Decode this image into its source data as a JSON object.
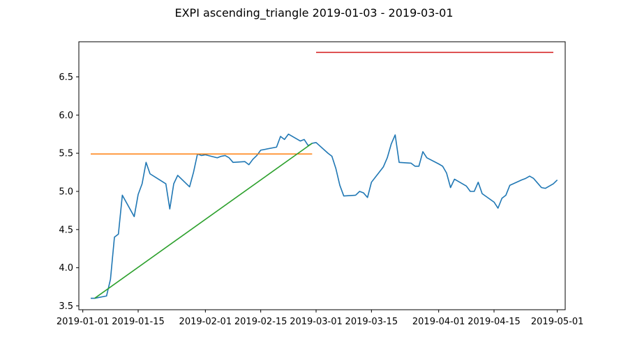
{
  "chart_data": {
    "type": "line",
    "title": "EXPI ascending_triangle 2019-01-03 - 2019-03-01",
    "xlabel": "",
    "ylabel": "",
    "x_range": [
      "2018-12-31",
      "2019-05-03"
    ],
    "ylim": [
      3.45,
      6.96
    ],
    "grid": false,
    "x_ticks": [
      "2019-01-01",
      "2019-01-15",
      "2019-02-01",
      "2019-02-15",
      "2019-03-01",
      "2019-03-15",
      "2019-04-01",
      "2019-04-15",
      "2019-05-01"
    ],
    "y_ticks": [
      3.5,
      4.0,
      4.5,
      5.0,
      5.5,
      6.0,
      6.5
    ],
    "y_tick_labels": [
      "3.5",
      "4.0",
      "4.5",
      "5.0",
      "5.5",
      "6.0",
      "6.5"
    ],
    "series": [
      {
        "color": "#1f77b4",
        "points": [
          [
            "2019-01-03",
            3.6
          ],
          [
            "2019-01-04",
            3.6
          ],
          [
            "2019-01-07",
            3.63
          ],
          [
            "2019-01-08",
            3.85
          ],
          [
            "2019-01-09",
            4.4
          ],
          [
            "2019-01-10",
            4.44
          ],
          [
            "2019-01-11",
            4.95
          ],
          [
            "2019-01-14",
            4.67
          ],
          [
            "2019-01-15",
            4.96
          ],
          [
            "2019-01-16",
            5.1
          ],
          [
            "2019-01-17",
            5.38
          ],
          [
            "2019-01-18",
            5.23
          ],
          [
            "2019-01-22",
            5.1
          ],
          [
            "2019-01-23",
            4.77
          ],
          [
            "2019-01-24",
            5.1
          ],
          [
            "2019-01-25",
            5.21
          ],
          [
            "2019-01-28",
            5.06
          ],
          [
            "2019-01-29",
            5.25
          ],
          [
            "2019-01-30",
            5.49
          ],
          [
            "2019-01-31",
            5.47
          ],
          [
            "2019-02-01",
            5.48
          ],
          [
            "2019-02-04",
            5.44
          ],
          [
            "2019-02-05",
            5.46
          ],
          [
            "2019-02-06",
            5.47
          ],
          [
            "2019-02-07",
            5.44
          ],
          [
            "2019-02-08",
            5.38
          ],
          [
            "2019-02-11",
            5.39
          ],
          [
            "2019-02-12",
            5.35
          ],
          [
            "2019-02-13",
            5.42
          ],
          [
            "2019-02-14",
            5.47
          ],
          [
            "2019-02-15",
            5.54
          ],
          [
            "2019-02-19",
            5.58
          ],
          [
            "2019-02-20",
            5.72
          ],
          [
            "2019-02-21",
            5.68
          ],
          [
            "2019-02-22",
            5.75
          ],
          [
            "2019-02-25",
            5.66
          ],
          [
            "2019-02-26",
            5.68
          ],
          [
            "2019-02-27",
            5.6
          ],
          [
            "2019-02-28",
            5.63
          ],
          [
            "2019-03-01",
            5.64
          ],
          [
            "2019-03-04",
            5.5
          ],
          [
            "2019-03-05",
            5.46
          ],
          [
            "2019-03-06",
            5.3
          ],
          [
            "2019-03-07",
            5.08
          ],
          [
            "2019-03-08",
            4.94
          ],
          [
            "2019-03-11",
            4.95
          ],
          [
            "2019-03-12",
            5.0
          ],
          [
            "2019-03-13",
            4.98
          ],
          [
            "2019-03-14",
            4.92
          ],
          [
            "2019-03-15",
            5.12
          ],
          [
            "2019-03-18",
            5.32
          ],
          [
            "2019-03-19",
            5.44
          ],
          [
            "2019-03-20",
            5.62
          ],
          [
            "2019-03-21",
            5.74
          ],
          [
            "2019-03-22",
            5.38
          ],
          [
            "2019-03-25",
            5.37
          ],
          [
            "2019-03-26",
            5.33
          ],
          [
            "2019-03-27",
            5.33
          ],
          [
            "2019-03-28",
            5.52
          ],
          [
            "2019-03-29",
            5.44
          ],
          [
            "2019-04-01",
            5.36
          ],
          [
            "2019-04-02",
            5.33
          ],
          [
            "2019-04-03",
            5.24
          ],
          [
            "2019-04-04",
            5.05
          ],
          [
            "2019-04-05",
            5.16
          ],
          [
            "2019-04-08",
            5.07
          ],
          [
            "2019-04-09",
            5.0
          ],
          [
            "2019-04-10",
            5.0
          ],
          [
            "2019-04-11",
            5.12
          ],
          [
            "2019-04-12",
            4.97
          ],
          [
            "2019-04-15",
            4.86
          ],
          [
            "2019-04-16",
            4.78
          ],
          [
            "2019-04-17",
            4.91
          ],
          [
            "2019-04-18",
            4.95
          ],
          [
            "2019-04-19",
            5.08
          ],
          [
            "2019-04-22",
            5.15
          ],
          [
            "2019-04-23",
            5.17
          ],
          [
            "2019-04-24",
            5.2
          ],
          [
            "2019-04-25",
            5.17
          ],
          [
            "2019-04-26",
            5.11
          ],
          [
            "2019-04-27",
            5.05
          ],
          [
            "2019-04-28",
            5.04
          ],
          [
            "2019-04-30",
            5.1
          ],
          [
            "2019-05-01",
            5.15
          ]
        ]
      },
      {
        "color": "#ff7f0e",
        "points": [
          [
            "2019-01-03",
            5.49
          ],
          [
            "2019-02-28",
            5.49
          ]
        ]
      },
      {
        "color": "#2ca02c",
        "points": [
          [
            "2019-01-04",
            3.6
          ],
          [
            "2019-02-28",
            5.63
          ]
        ]
      },
      {
        "color": "#d62728",
        "points": [
          [
            "2019-03-01",
            6.82
          ],
          [
            "2019-04-30",
            6.82
          ]
        ]
      }
    ]
  }
}
